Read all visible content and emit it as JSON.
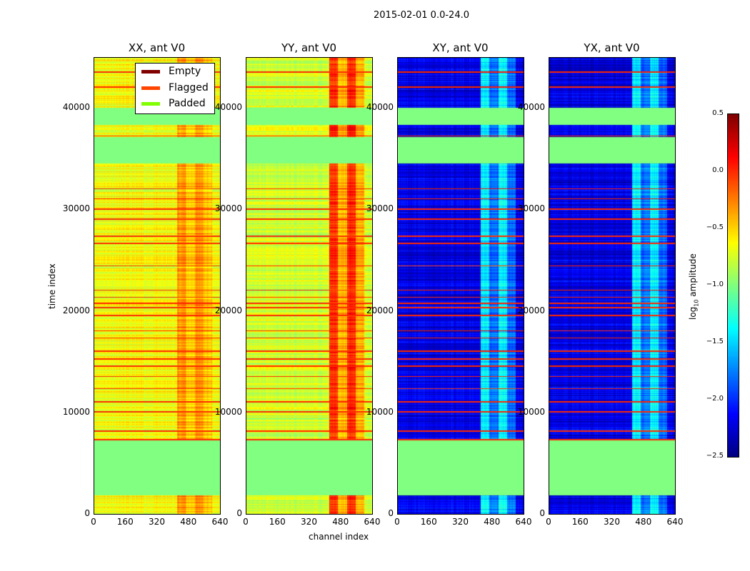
{
  "chart_data": {
    "type": "heatmap",
    "title": "2015-02-01 0.0-24.0",
    "xlabel": "channel index",
    "ylabel": "time index",
    "xlim": [
      0,
      640
    ],
    "ylim": [
      0,
      45000
    ],
    "xticks": [
      "0",
      "160",
      "320",
      "480",
      "640"
    ],
    "yticks": [
      "0",
      "10000",
      "20000",
      "30000",
      "40000"
    ],
    "panels": [
      {
        "title": "XX, ant V0",
        "base": -0.65,
        "hot": -0.3
      },
      {
        "title": "YY, ant V0",
        "base": -0.75,
        "hot": 0.0
      },
      {
        "title": "XY, ant V0",
        "base": -2.2,
        "hot": -1.4
      },
      {
        "title": "YX, ant V0",
        "base": -2.2,
        "hot": -1.4
      }
    ],
    "padded_ranges": [
      [
        1800,
        7200
      ],
      [
        34500,
        37100
      ],
      [
        38300,
        40000
      ]
    ],
    "flagged_rows": [
      7300,
      8100,
      10000,
      11000,
      12300,
      13500,
      14500,
      15200,
      16000,
      17300,
      18000,
      19500,
      20300,
      20700,
      21300,
      22000,
      24400,
      26600,
      27300,
      29000,
      30000,
      31000,
      32000,
      37200,
      42000,
      43500
    ],
    "colorbar": {
      "label": "log10 amplitude",
      "label_main": "log",
      "label_sub": "10",
      "label_rest": " amplitude",
      "min": -2.5,
      "max": 0.5,
      "ticks": [
        "0.5",
        "0.0",
        "−0.5",
        "−1.0",
        "−1.5",
        "−2.0",
        "−2.5"
      ]
    },
    "legend": {
      "placement": "top-right of first panel",
      "items": [
        {
          "label": "Empty",
          "color": "#800000"
        },
        {
          "label": "Flagged",
          "color": "#ff4500"
        },
        {
          "label": "Padded",
          "color": "#7fff00"
        }
      ]
    },
    "colors": {
      "padded": "#80ff80",
      "flagged": "#ff3000"
    }
  }
}
